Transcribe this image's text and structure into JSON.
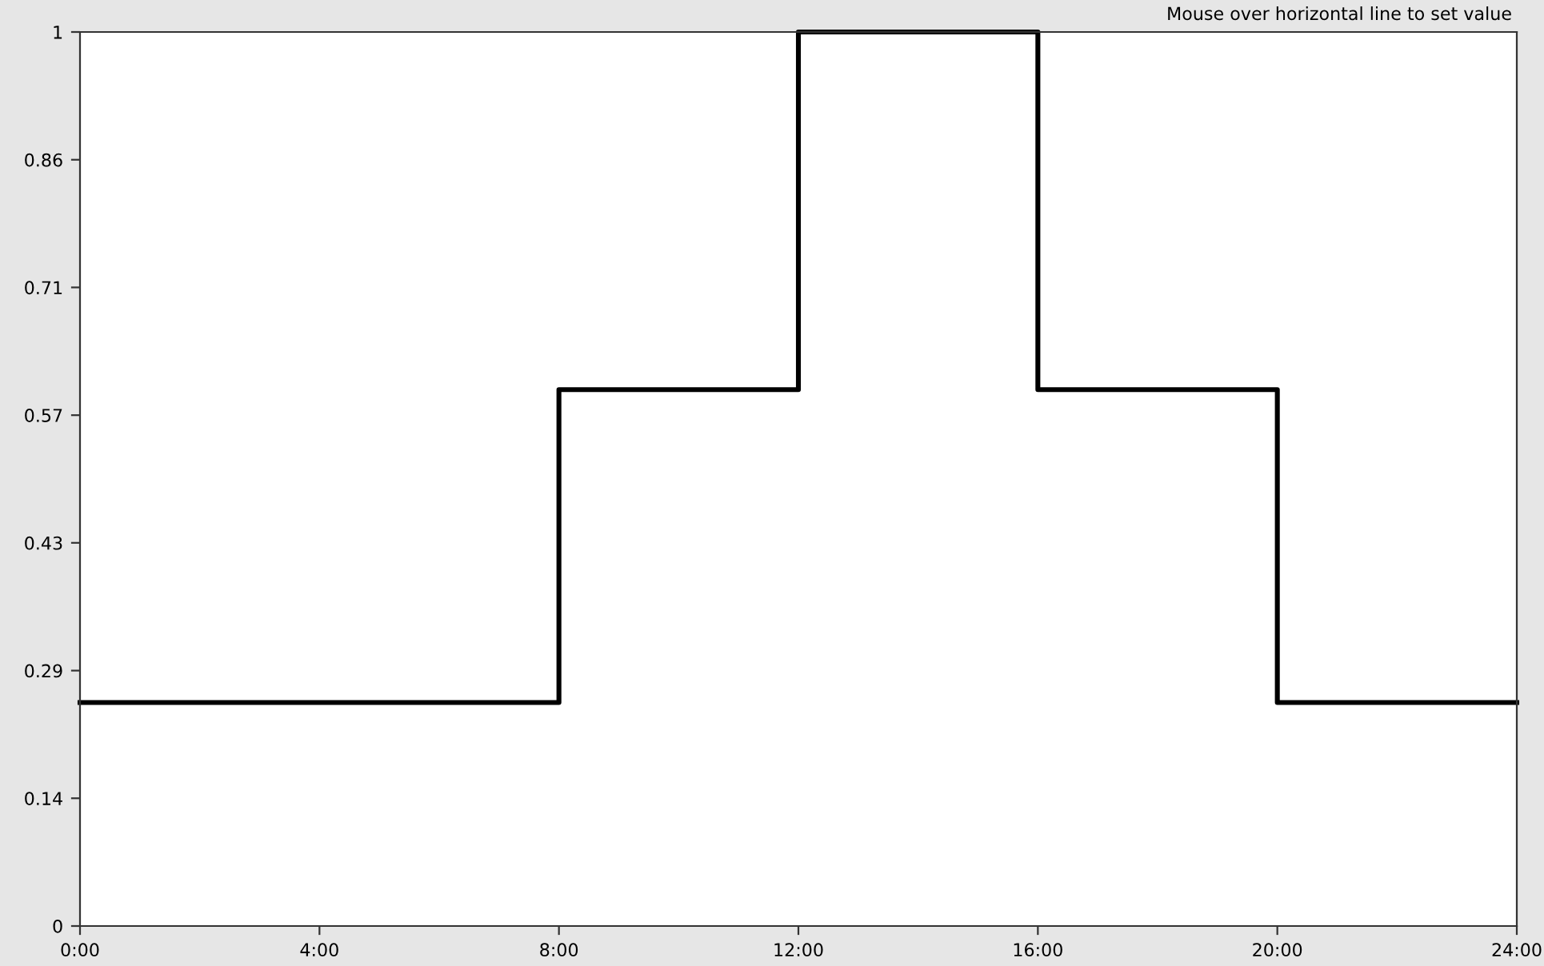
{
  "chart_data": {
    "type": "step",
    "x": [
      0,
      8,
      12,
      16,
      20,
      24
    ],
    "series": [
      {
        "color": "#000000",
        "values": [
          0.25,
          0.6,
          1,
          0.6,
          0.25,
          0.25
        ]
      }
    ],
    "xlim": [
      0,
      24
    ],
    "xticks": [
      {
        "value": 0,
        "label": "0:00"
      },
      {
        "value": 4,
        "label": "4:00"
      },
      {
        "value": 8,
        "label": "8:00"
      },
      {
        "value": 12,
        "label": "12:00"
      },
      {
        "value": 16,
        "label": "16:00"
      },
      {
        "value": 20,
        "label": "20:00"
      },
      {
        "value": 24,
        "label": "24:00"
      }
    ],
    "ylim": [
      0,
      1
    ],
    "yticks": [
      0,
      {
        "value": 0.1429,
        "label": "0.14"
      },
      {
        "value": 0.2857,
        "label": "0.29"
      },
      {
        "value": 0.4286,
        "label": "0.43"
      },
      {
        "value": 0.5714,
        "label": "0.57"
      },
      {
        "value": 0.7143,
        "label": "0.71"
      },
      {
        "value": 0.8571,
        "label": "0.86"
      },
      1
    ],
    "grid": false,
    "legend": false,
    "annotations": [
      "Mouse over horizontal line to set value"
    ]
  }
}
